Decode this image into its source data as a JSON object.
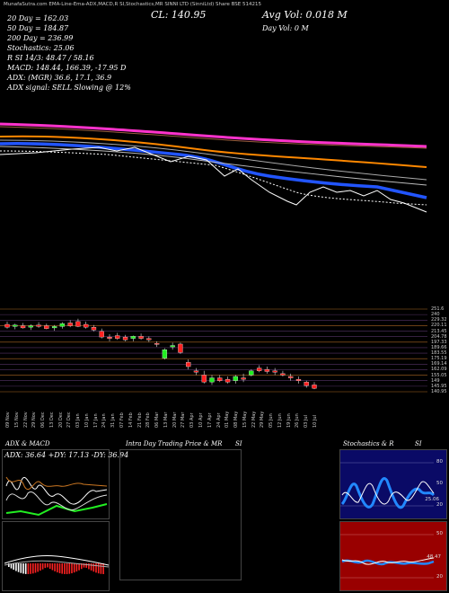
{
  "header": {
    "top_small": "MunafaSutra.com  EMA-Line-Ema-ADX,MACD,R  SI,Stochastics,MR  SINNI LTD (SinniLtd) Share  BSE 514215",
    "cl": "CL: 140.95",
    "avg_vol": "Avg Vol: 0.018  M",
    "day_vol": "Day Vol: 0   M",
    "ema20": "20  Day = 162.03",
    "ema50": "50  Day = 184.87",
    "ema200": "200  Day = 236.99",
    "stoch_r": "Stochastics: 25.06",
    "rsi": "R                    SI 14/3: 48.47 / 58.16",
    "macd": "MACD: 148.44, 166.39, -17.95 D",
    "adx": "ADX:                  (MGR) 36.6, 17.1, 36.9",
    "adx_signal": "ADX  signal: SELL  Slowing @ 12%"
  },
  "price_levels": [
    "251.6",
    "240",
    "229.32",
    "220.11",
    "213.45",
    "204.78",
    "197.33",
    "189.66",
    "183.55",
    "175.19",
    "169.14",
    "162.09",
    "155.05",
    "149",
    "145.95",
    "140.95"
  ],
  "dates": [
    "09 Nov",
    "15 Nov",
    "22 Nov",
    "29 Nov",
    "06 Dec",
    "13 Dec",
    "20 Dec",
    "27 Dec",
    "03 Jan",
    "10 Jan",
    "17 Jan",
    "24 Jan",
    "31 Jan",
    "07 Feb",
    "14 Feb",
    "21 Feb",
    "28 Feb",
    "06 Mar",
    "13 Mar",
    "20 Mar",
    "27 Mar",
    "03 Apr",
    "10 Apr",
    "17 Apr",
    "24 Apr",
    "01 May",
    "08 May",
    "15 May",
    "22 May",
    "29 May",
    "05 Jun",
    "12 Jun",
    "19 Jun",
    "26 Jun",
    "03 Jul",
    "10 Jul"
  ],
  "panels": {
    "adx_title": "ADX  & MACD",
    "adx_values": "ADX: 36.64  +DY: 17.13  -DY: 36.94",
    "intra_title": "Intra Day Trading Price  & MR",
    "si_label": "SI",
    "stoch_title": "Stochastics & R",
    "stoch_si": "SI",
    "stoch_ticks": [
      "80",
      "50",
      "20"
    ],
    "stoch_mark": "25.06",
    "rsi_ticks": [
      "50",
      "20"
    ],
    "rsi_mark": "48.47"
  },
  "chart_data": {
    "type": "candlestick",
    "title": "SINNI LTD (SinniLtd) Share BSE 514215",
    "xlabel": "",
    "ylabel": "",
    "ylim": [
      135,
      255
    ],
    "candles": [
      {
        "o": 232,
        "h": 236,
        "l": 226,
        "c": 228
      },
      {
        "o": 229,
        "h": 233,
        "l": 225,
        "c": 231
      },
      {
        "o": 230,
        "h": 234,
        "l": 226,
        "c": 227
      },
      {
        "o": 228,
        "h": 232,
        "l": 224,
        "c": 230
      },
      {
        "o": 231,
        "h": 235,
        "l": 227,
        "c": 229
      },
      {
        "o": 230,
        "h": 233,
        "l": 225,
        "c": 226
      },
      {
        "o": 227,
        "h": 231,
        "l": 223,
        "c": 229
      },
      {
        "o": 229,
        "h": 235,
        "l": 226,
        "c": 233
      },
      {
        "o": 234,
        "h": 238,
        "l": 228,
        "c": 230
      },
      {
        "o": 236,
        "h": 240,
        "l": 228,
        "c": 229
      },
      {
        "o": 232,
        "h": 236,
        "l": 226,
        "c": 228
      },
      {
        "o": 228,
        "h": 231,
        "l": 222,
        "c": 224
      },
      {
        "o": 222,
        "h": 226,
        "l": 212,
        "c": 214
      },
      {
        "o": 214,
        "h": 218,
        "l": 208,
        "c": 212
      },
      {
        "o": 216,
        "h": 220,
        "l": 210,
        "c": 212
      },
      {
        "o": 214,
        "h": 217,
        "l": 208,
        "c": 210
      },
      {
        "o": 212,
        "h": 216,
        "l": 208,
        "c": 215
      },
      {
        "o": 215,
        "h": 219,
        "l": 210,
        "c": 212
      },
      {
        "o": 212,
        "h": 215,
        "l": 207,
        "c": 210
      },
      {
        "o": 205,
        "h": 208,
        "l": 200,
        "c": 204
      },
      {
        "o": 184,
        "h": 198,
        "l": 182,
        "c": 196
      },
      {
        "o": 200,
        "h": 206,
        "l": 196,
        "c": 202
      },
      {
        "o": 204,
        "h": 206,
        "l": 190,
        "c": 192
      },
      {
        "o": 178,
        "h": 182,
        "l": 168,
        "c": 172
      },
      {
        "o": 166,
        "h": 170,
        "l": 160,
        "c": 164
      },
      {
        "o": 160,
        "h": 166,
        "l": 148,
        "c": 150
      },
      {
        "o": 150,
        "h": 160,
        "l": 146,
        "c": 156
      },
      {
        "o": 156,
        "h": 160,
        "l": 150,
        "c": 152
      },
      {
        "o": 154,
        "h": 158,
        "l": 148,
        "c": 150
      },
      {
        "o": 152,
        "h": 160,
        "l": 148,
        "c": 158
      },
      {
        "o": 156,
        "h": 162,
        "l": 150,
        "c": 154
      },
      {
        "o": 160,
        "h": 168,
        "l": 158,
        "c": 166
      },
      {
        "o": 170,
        "h": 174,
        "l": 164,
        "c": 166
      },
      {
        "o": 168,
        "h": 172,
        "l": 162,
        "c": 165
      },
      {
        "o": 166,
        "h": 170,
        "l": 160,
        "c": 164
      },
      {
        "o": 162,
        "h": 166,
        "l": 158,
        "c": 160
      },
      {
        "o": 158,
        "h": 162,
        "l": 152,
        "c": 156
      },
      {
        "o": 154,
        "h": 158,
        "l": 148,
        "c": 152
      },
      {
        "o": 150,
        "h": 152,
        "l": 142,
        "c": 145
      },
      {
        "o": 146,
        "h": 150,
        "l": 140,
        "c": 141
      }
    ]
  }
}
